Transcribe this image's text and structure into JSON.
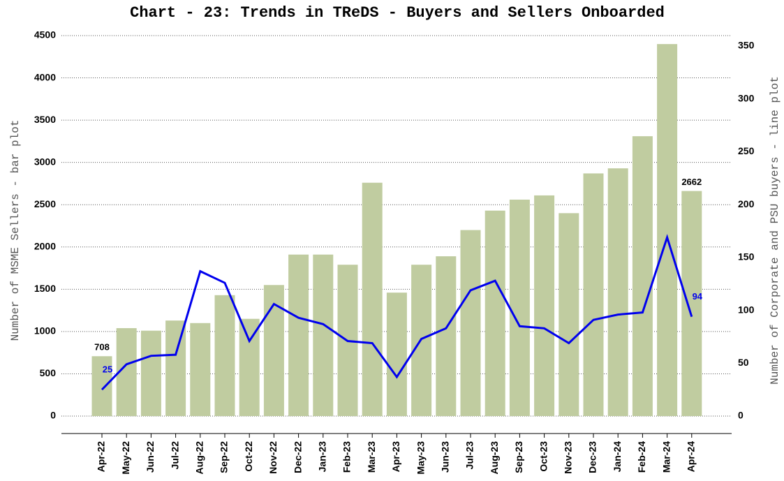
{
  "chart_data": {
    "type": "bar_line",
    "title": "Chart - 23: Trends in TReDS - Buyers and Sellers Onboarded",
    "y_label": "Number of MSME Sellers - bar plot",
    "y2_label": "Number of Corporate and PSU buyers - line plot",
    "categories": [
      "Apr-22",
      "May-22",
      "Jun-22",
      "Jul-22",
      "Aug-22",
      "Sep-22",
      "Oct-22",
      "Nov-22",
      "Dec-22",
      "Jan-23",
      "Feb-23",
      "Mar-23",
      "Apr-23",
      "May-23",
      "Jun-23",
      "Jul-23",
      "Aug-23",
      "Sep-23",
      "Oct-23",
      "Nov-23",
      "Dec-23",
      "Jan-24",
      "Feb-24",
      "Mar-24",
      "Apr-24"
    ],
    "series": [
      {
        "name": "MSME Sellers",
        "type": "bar",
        "color": "#c0cca0",
        "values": [
          708,
          1040,
          1010,
          1130,
          1100,
          1430,
          1150,
          1550,
          1910,
          1910,
          1790,
          2760,
          1460,
          1790,
          1890,
          2200,
          2430,
          2560,
          2610,
          2400,
          2870,
          2930,
          3310,
          4400,
          2662
        ],
        "labeled": [
          0,
          24
        ]
      },
      {
        "name": "Corporate and PSU buyers",
        "type": "line",
        "axis": "y2",
        "color": "#0000ee",
        "values": [
          25,
          49,
          57,
          58,
          137,
          126,
          71,
          106,
          93,
          87,
          71,
          69,
          37,
          73,
          83,
          119,
          128,
          85,
          83,
          69,
          91,
          96,
          98,
          169,
          94
        ],
        "labeled": [
          0,
          24
        ]
      }
    ],
    "ylim": [
      0,
      4500
    ],
    "yticks": [
      0,
      500,
      1000,
      1500,
      2000,
      2500,
      3000,
      3500,
      4000,
      4500
    ],
    "y2lim": [
      0,
      350
    ],
    "y2ticks": [
      0,
      50,
      100,
      150,
      200,
      250,
      300,
      350
    ],
    "grid": true
  }
}
